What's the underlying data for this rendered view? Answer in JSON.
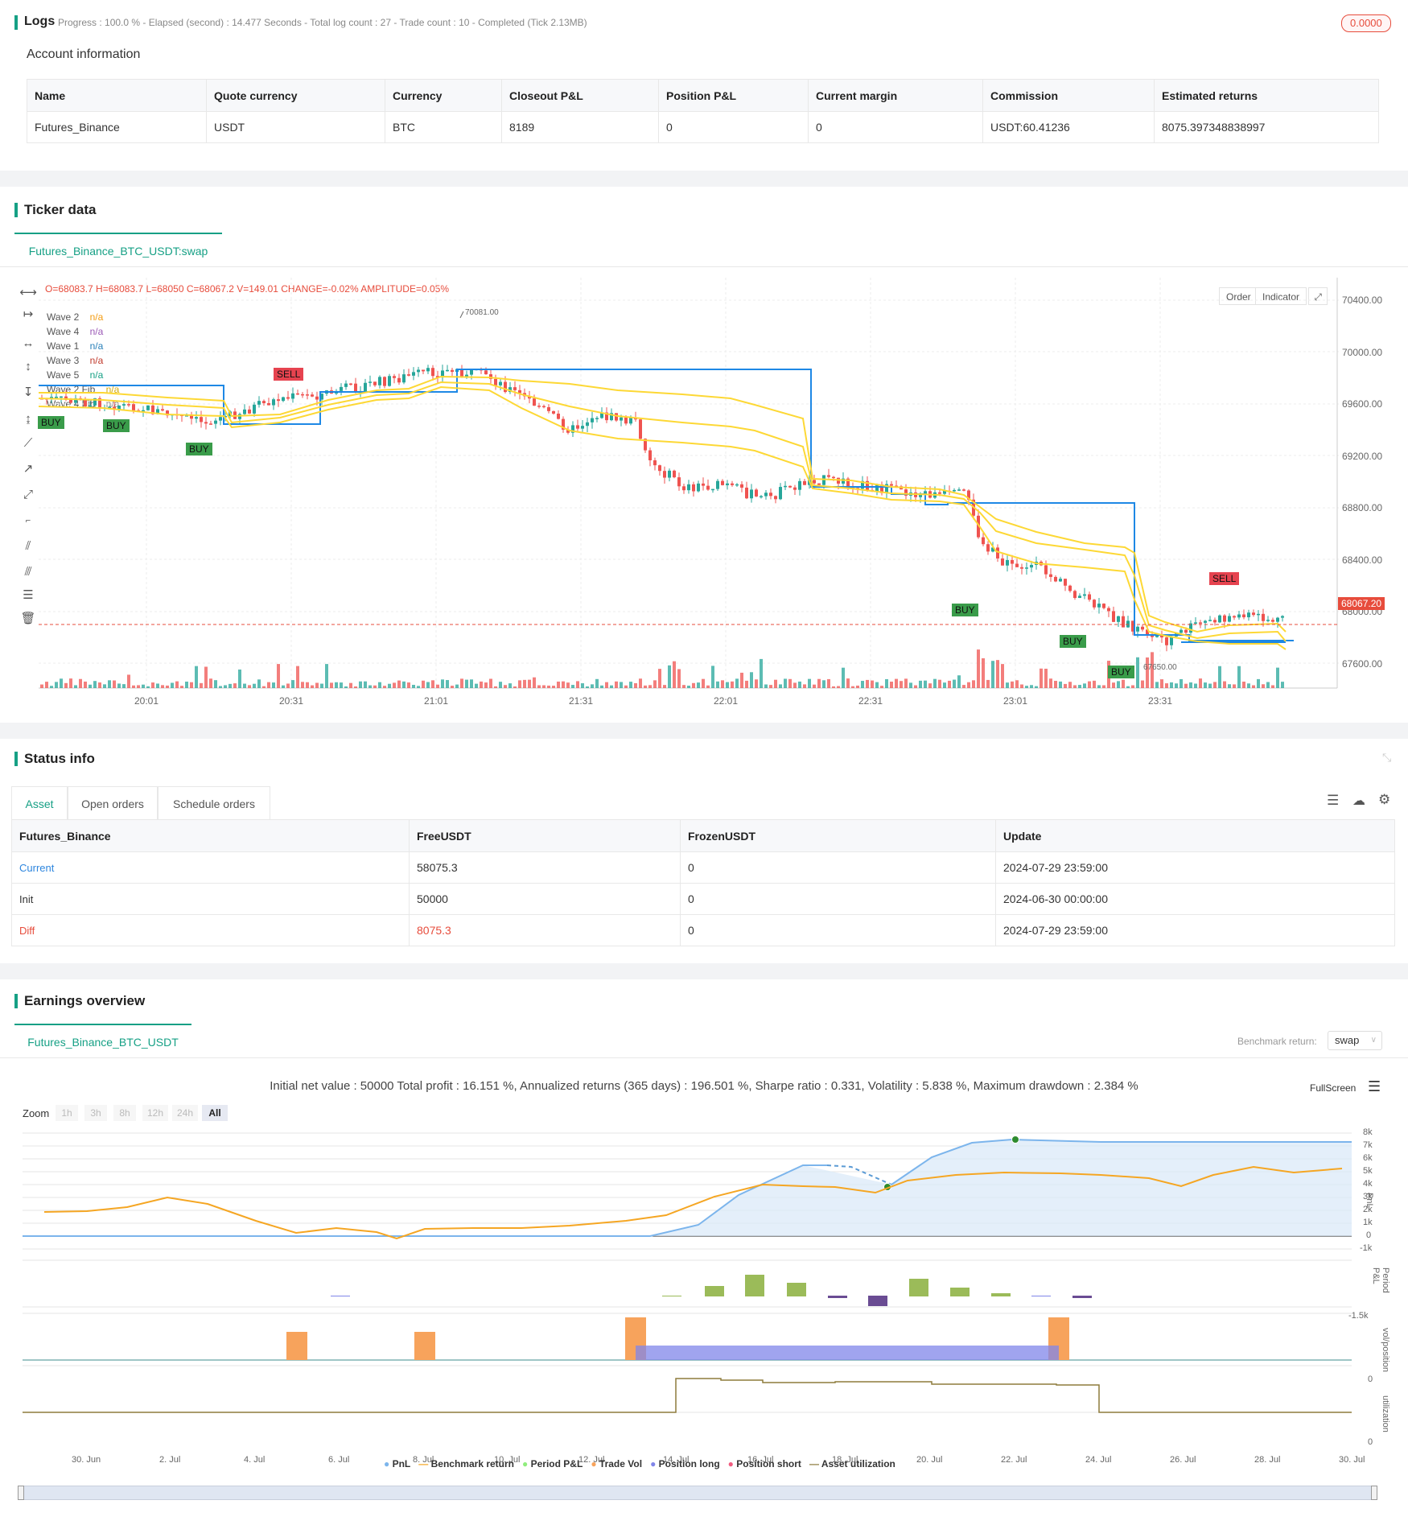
{
  "logs": {
    "title": "Logs",
    "progress": "Progress : 100.0 % - Elapsed (second) : 14.477  Seconds - Total log count : 27 - Trade count : 10 - Completed (Tick 2.13MB)",
    "badge": "0.0000",
    "account_heading": "Account information",
    "columns": [
      "Name",
      "Quote currency",
      "Currency",
      "Closeout P&L",
      "Position P&L",
      "Current margin",
      "Commission",
      "Estimated returns"
    ],
    "row": [
      "Futures_Binance",
      "USDT",
      "BTC",
      "8189",
      "0",
      "0",
      "USDT:60.41236",
      "8075.397348838997"
    ]
  },
  "ticker": {
    "title": "Ticker data",
    "tab": "Futures_Binance_BTC_USDT:swap",
    "ohlc": "O=68083.7 H=68083.7 L=68050 C=68067.2 V=149.01 CHANGE=-0.02% AMPLITUDE=0.05%",
    "buttons": {
      "order": "Order",
      "indicator": "Indicator",
      "expand_icon": "expand-icon"
    },
    "legend": [
      {
        "label": "Wave 2",
        "value": "n/a",
        "color": "#f39c12"
      },
      {
        "label": "Wave 4",
        "value": "n/a",
        "color": "#9b59b6"
      },
      {
        "label": "Wave 1",
        "value": "n/a",
        "color": "#2980b9"
      },
      {
        "label": "Wave 3",
        "value": "n/a",
        "color": "#c0392b"
      },
      {
        "label": "Wave 5",
        "value": "n/a",
        "color": "#16a085"
      },
      {
        "label": "Wave 2 Fib",
        "value": "n/a",
        "color": "#d4ac0d"
      },
      {
        "label": "Wave 4 Fib",
        "value": "n/a",
        "color": "#888888"
      }
    ],
    "price_axis": [
      "70400.00",
      "70000.00",
      "69600.00",
      "69200.00",
      "68800.00",
      "68400.00",
      "68000.00",
      "67600.00"
    ],
    "time_axis": [
      "20:01",
      "20:31",
      "21:01",
      "21:31",
      "22:01",
      "22:31",
      "23:01",
      "23:31"
    ],
    "last_price": "68067.20",
    "high_marker": "70081.00",
    "low_marker": "67650.00",
    "signals": {
      "buy": "BUY",
      "sell": "SELL"
    },
    "colors": {
      "up": "#26a69a",
      "down": "#ef5350",
      "wave_line": "#1e88e5",
      "fib_line": "#ffeb3b"
    }
  },
  "status": {
    "title": "Status info",
    "tabs": [
      "Asset",
      "Open orders",
      "Schedule orders"
    ],
    "columns": [
      "Futures_Binance",
      "FreeUSDT",
      "FrozenUSDT",
      "Update"
    ],
    "rows": [
      [
        "Current",
        "58075.3",
        "0",
        "2024-07-29 23:59:00"
      ],
      [
        "Init",
        "50000",
        "0",
        "2024-06-30 00:00:00"
      ],
      [
        "Diff",
        "8075.3",
        "0",
        "2024-07-29 23:59:00"
      ]
    ]
  },
  "earnings": {
    "title": "Earnings overview",
    "tab": "Futures_Binance_BTC_USDT",
    "benchmark_label": "Benchmark return:",
    "benchmark_value": "swap",
    "summary": "Initial net value : 50000 Total profit : 16.151 %, Annualized returns (365 days) : 196.501 %, Sharpe ratio : 0.331, Volatility : 5.838 %, Maximum drawdown : 2.384 %",
    "fullscreen": "FullScreen",
    "zoom_label": "Zoom",
    "zoom_options": [
      "1h",
      "3h",
      "8h",
      "12h",
      "24h",
      "All"
    ],
    "pnl_axis": [
      "8k",
      "7k",
      "6k",
      "5k",
      "4k",
      "3k",
      "2k",
      "1k",
      "0",
      "-1k"
    ],
    "period_axis": [
      "-1.5k"
    ],
    "vol_axis": [
      "0"
    ],
    "util_axis": [
      "0"
    ],
    "panel_labels": [
      "PnL",
      "Period P&L",
      "vol/position",
      "utilization"
    ],
    "date_axis": [
      "30. Jun",
      "2. Jul",
      "4. Jul",
      "6. Jul",
      "8. Jul",
      "10. Jul",
      "12. Jul",
      "14. Jul",
      "16. Jul",
      "18. Jul",
      "20. Jul",
      "22. Jul",
      "24. Jul",
      "26. Jul",
      "28. Jul",
      "30. Jul"
    ],
    "legend": [
      {
        "label": "PnL",
        "color": "#7cb5ec"
      },
      {
        "label": "Benchmark return",
        "color": "#f5a623"
      },
      {
        "label": "Period P&L",
        "color": "#90ed7d"
      },
      {
        "label": "Trade Vol",
        "color": "#f7a35c"
      },
      {
        "label": "Position long",
        "color": "#8085e9"
      },
      {
        "label": "Position short",
        "color": "#f15c80"
      },
      {
        "label": "Asset utilization",
        "color": "#8d7b3c"
      }
    ]
  }
}
